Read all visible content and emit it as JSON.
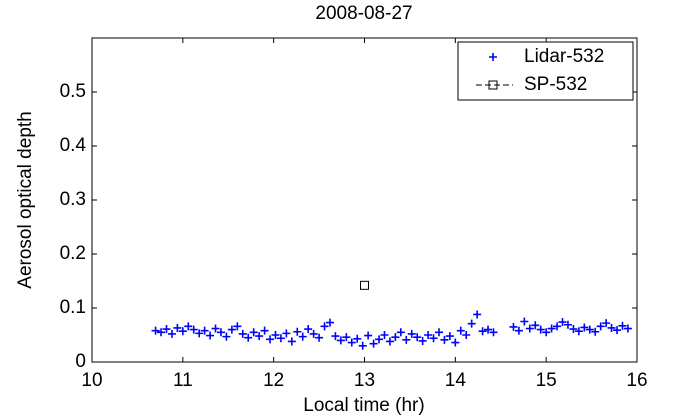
{
  "chart_data": {
    "type": "scatter",
    "title": "2008-08-27",
    "xlabel": "Local time (hr)",
    "ylabel": "Aerosol optical depth",
    "xlim": [
      10,
      16
    ],
    "ylim": [
      0,
      0.6
    ],
    "xticks": [
      10,
      11,
      12,
      13,
      14,
      15,
      16
    ],
    "yticks": [
      0,
      0.1,
      0.2,
      0.3,
      0.4,
      0.5
    ],
    "grid": false,
    "legend": "upper right",
    "series": [
      {
        "name": "Lidar-532",
        "color": "#0000ff",
        "marker": "plus",
        "x": [
          10.7,
          10.76,
          10.82,
          10.88,
          10.94,
          11.0,
          11.06,
          11.12,
          11.18,
          11.24,
          11.3,
          11.36,
          11.42,
          11.48,
          11.54,
          11.6,
          11.66,
          11.72,
          11.78,
          11.84,
          11.9,
          11.96,
          12.02,
          12.08,
          12.14,
          12.2,
          12.26,
          12.32,
          12.38,
          12.44,
          12.5,
          12.56,
          12.62,
          12.68,
          12.74,
          12.8,
          12.86,
          12.92,
          12.98,
          13.04,
          13.1,
          13.16,
          13.22,
          13.28,
          13.34,
          13.4,
          13.46,
          13.52,
          13.58,
          13.64,
          13.7,
          13.76,
          13.82,
          13.88,
          13.94,
          14.0,
          14.06,
          14.12,
          14.18,
          14.24,
          14.3,
          14.36,
          14.42,
          14.64,
          14.7,
          14.76,
          14.82,
          14.88,
          14.94,
          15.0,
          15.06,
          15.12,
          15.18,
          15.24,
          15.3,
          15.36,
          15.42,
          15.48,
          15.54,
          15.6,
          15.66,
          15.72,
          15.78,
          15.84,
          15.9
        ],
        "values": [
          0.058,
          0.055,
          0.061,
          0.052,
          0.063,
          0.057,
          0.066,
          0.06,
          0.053,
          0.058,
          0.049,
          0.062,
          0.055,
          0.047,
          0.06,
          0.066,
          0.052,
          0.045,
          0.055,
          0.048,
          0.058,
          0.042,
          0.05,
          0.044,
          0.053,
          0.038,
          0.056,
          0.047,
          0.061,
          0.052,
          0.045,
          0.066,
          0.073,
          0.048,
          0.04,
          0.046,
          0.036,
          0.043,
          0.03,
          0.049,
          0.034,
          0.042,
          0.05,
          0.038,
          0.046,
          0.055,
          0.041,
          0.052,
          0.046,
          0.039,
          0.05,
          0.044,
          0.055,
          0.041,
          0.048,
          0.036,
          0.058,
          0.05,
          0.071,
          0.088,
          0.057,
          0.06,
          0.055,
          0.065,
          0.058,
          0.075,
          0.062,
          0.068,
          0.06,
          0.055,
          0.062,
          0.066,
          0.074,
          0.069,
          0.061,
          0.057,
          0.064,
          0.06,
          0.056,
          0.066,
          0.072,
          0.063,
          0.059,
          0.067,
          0.062
        ]
      },
      {
        "name": "SP-532",
        "color": "#000000",
        "marker": "square",
        "x": [
          13.0
        ],
        "values": [
          0.142
        ]
      }
    ]
  }
}
